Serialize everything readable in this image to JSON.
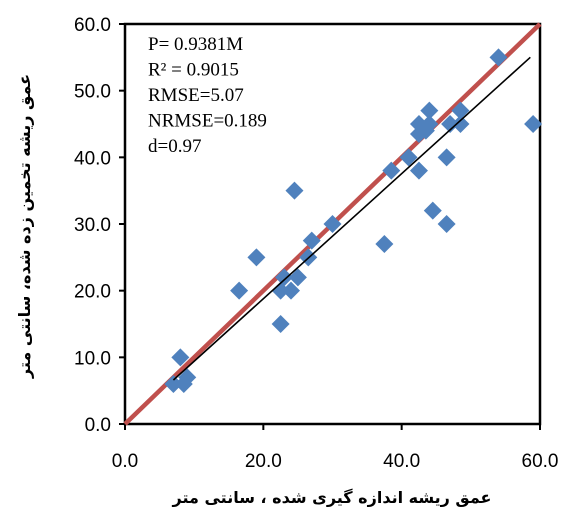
{
  "chart_data": {
    "type": "scatter",
    "xlabel": "عمق ریشه اندازه گیری شده ، سانتی متر",
    "ylabel": "عمق ریشه تخمین زده شده، سانتی متر",
    "xlim": [
      0,
      60
    ],
    "ylim": [
      0,
      60
    ],
    "x_ticks": [
      "0.0",
      "20.0",
      "40.0",
      "60.0"
    ],
    "y_ticks": [
      "0.0",
      "10.0",
      "20.0",
      "30.0",
      "40.0",
      "50.0",
      "60.0"
    ],
    "grid": false,
    "annotations": [
      "P= 0.9381M",
      "R² = 0.9015",
      "RMSE=5.07",
      "NRMSE=0.189",
      "d=0.97"
    ],
    "reference_line": {
      "points": [
        [
          0,
          0
        ],
        [
          60,
          60
        ]
      ],
      "color": "#c0504d"
    },
    "trend_line": {
      "points": [
        [
          7,
          6.6
        ],
        [
          58.6,
          55
        ]
      ],
      "color": "#000000"
    },
    "marker_color": "#4f81bd",
    "points": [
      [
        7,
        6
      ],
      [
        8,
        10
      ],
      [
        8.5,
        6
      ],
      [
        9,
        7
      ],
      [
        16.5,
        20
      ],
      [
        19,
        25
      ],
      [
        22.5,
        15
      ],
      [
        22.5,
        20
      ],
      [
        23,
        22
      ],
      [
        24,
        20
      ],
      [
        24.5,
        35
      ],
      [
        25,
        22
      ],
      [
        26.5,
        25
      ],
      [
        27,
        27.5
      ],
      [
        30,
        30
      ],
      [
        37.5,
        27
      ],
      [
        38.5,
        38
      ],
      [
        41,
        40
      ],
      [
        42.5,
        45
      ],
      [
        42.5,
        43.5
      ],
      [
        42.5,
        38
      ],
      [
        43.5,
        44
      ],
      [
        44,
        47
      ],
      [
        44,
        45
      ],
      [
        44.5,
        32
      ],
      [
        46.5,
        30
      ],
      [
        46.5,
        40
      ],
      [
        47,
        45
      ],
      [
        48.5,
        47
      ],
      [
        48.5,
        45
      ],
      [
        54,
        55
      ],
      [
        59,
        45
      ]
    ]
  }
}
